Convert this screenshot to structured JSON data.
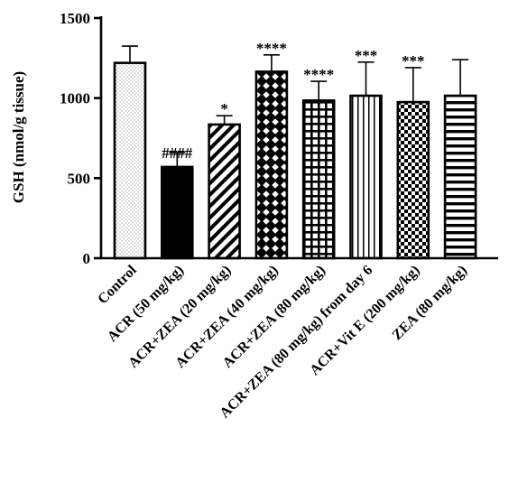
{
  "chart_data": {
    "type": "bar",
    "ylabel": "GSH (nmol/g tissue)",
    "xlabel": "",
    "ylim": [
      0,
      1500
    ],
    "yticks": [
      "0",
      "500",
      "1000",
      "1500"
    ],
    "yticks_values": [
      0,
      500,
      1000,
      1500
    ],
    "grid": false,
    "categories": [
      "Control",
      "ACR (50 mg/kg)",
      "ACR+ZEA (20 mg/kg)",
      "ACR+ZEA (40 mg/kg)",
      "ACR+ZEA (80 mg/kg)",
      "ACR+ZEA (80 mg/kg) from day 6",
      "ACR+Vit E (200 mg/kg)",
      "ZEA (80 mg/kg)"
    ],
    "values": [
      1220,
      570,
      835,
      1165,
      985,
      1015,
      975,
      1015
    ],
    "error_upper": [
      105,
      90,
      55,
      105,
      120,
      210,
      215,
      225
    ],
    "annotations": [
      "",
      "####",
      "*",
      "****",
      "****",
      "***",
      "***",
      ""
    ],
    "patterns": [
      "dots",
      "solid",
      "diagonal-stripes",
      "diamond-lattice",
      "grid",
      "vertical-stripes",
      "checkerboard",
      "horizontal-stripes"
    ],
    "color": "#000000"
  }
}
